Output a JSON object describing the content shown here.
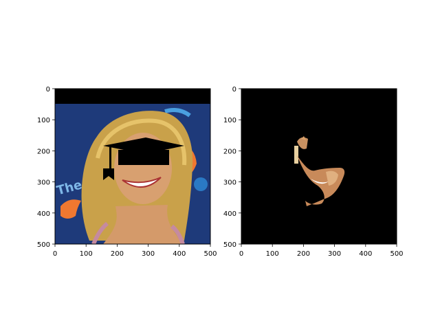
{
  "figure": {
    "panels": [
      {
        "name": "left-image-panel",
        "content": "face-with-graduation-cap-and-black-eye-bar",
        "x_ticks": [
          "0",
          "100",
          "200",
          "300",
          "400",
          "500"
        ],
        "y_ticks": [
          "0",
          "100",
          "200",
          "300",
          "400",
          "500"
        ],
        "xlim": [
          0,
          500
        ],
        "ylim": [
          500,
          0
        ]
      },
      {
        "name": "right-mask-panel",
        "content": "skin-region-segmentation-on-black",
        "x_ticks": [
          "0",
          "100",
          "200",
          "300",
          "400",
          "500"
        ],
        "y_ticks": [
          "0",
          "100",
          "200",
          "300",
          "400",
          "500"
        ],
        "xlim": [
          0,
          500
        ],
        "ylim": [
          500,
          0
        ]
      }
    ]
  },
  "colors": {
    "background": "#ffffff",
    "mask_background": "#000000",
    "skin": "#d49a6a",
    "hair": "#c9a14a",
    "backdrop": "#1e3a7a",
    "accent_orange": "#f07830",
    "graduation_cap": "#000000"
  }
}
